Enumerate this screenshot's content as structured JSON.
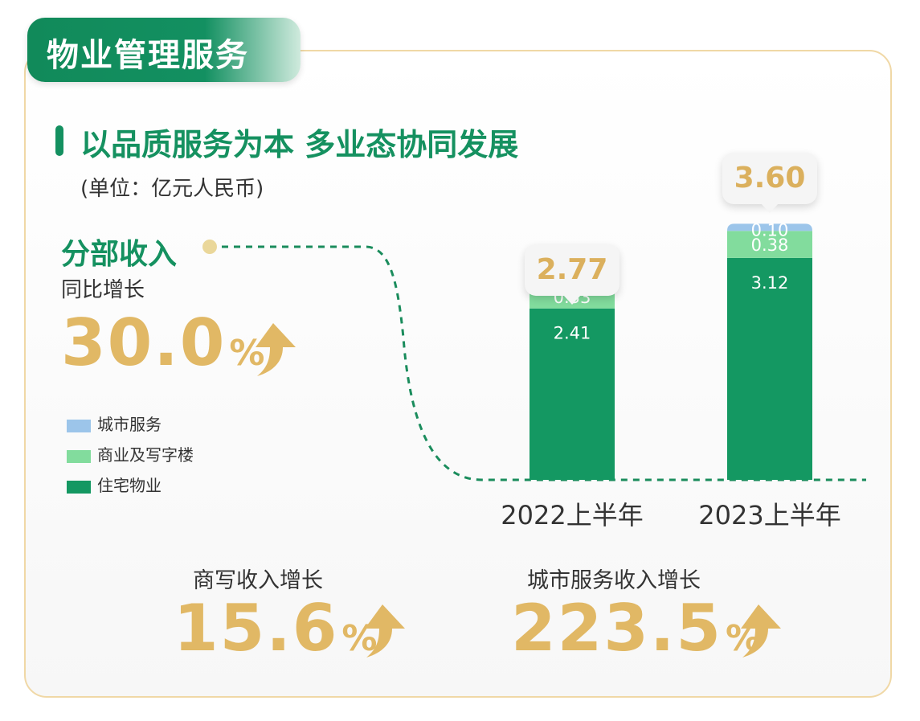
{
  "header": {
    "tab_title": "物业管理服务"
  },
  "title": "以品质服务为本 多业态协同发展",
  "unit": "(单位：亿元人民币)",
  "segment": {
    "title": "分部收入",
    "yoy_label": "同比增长",
    "yoy_value": "30.0",
    "yoy_unit": "%"
  },
  "metrics": [
    {
      "label": "商写收入增长",
      "value": "15.6",
      "unit": "%"
    },
    {
      "label": "城市服务收入增长",
      "value": "223.5",
      "unit": "%"
    }
  ],
  "colors": {
    "residential": "#149862",
    "commercial": "#82dc9d",
    "city": "#9cc5ea",
    "accent": "#e1b865",
    "brand": "#159160"
  },
  "icons": {
    "growth": "up-arrow-icon"
  },
  "chart_data": {
    "type": "bar",
    "stacked": true,
    "categories": [
      "2022上半年",
      "2023上半年"
    ],
    "series": [
      {
        "name": "住宅物业",
        "values": [
          2.41,
          3.12
        ]
      },
      {
        "name": "商业及写字楼",
        "values": [
          0.33,
          0.38
        ]
      },
      {
        "name": "城市服务",
        "values": [
          0.03,
          0.1
        ]
      }
    ],
    "series_labels": [
      [
        "2.41",
        "3.12"
      ],
      [
        "0.33",
        "0.38"
      ],
      [
        "0.03",
        "0.10"
      ]
    ],
    "totals": [
      "2.77",
      "3.60"
    ],
    "legend_order": [
      "城市服务",
      "商业及写字楼",
      "住宅物业"
    ],
    "ylim": [
      0,
      3.6
    ],
    "grid": false,
    "legend_position": "left"
  }
}
